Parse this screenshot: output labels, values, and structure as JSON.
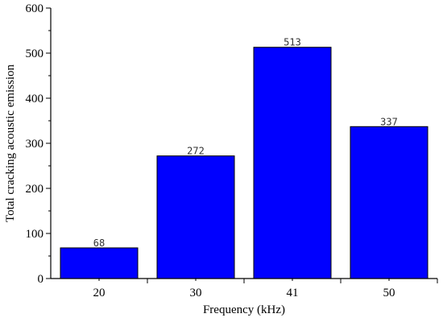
{
  "chart_data": {
    "type": "bar",
    "categories": [
      "20",
      "30",
      "41",
      "50"
    ],
    "values": [
      68,
      272,
      513,
      337
    ],
    "data_labels": [
      "68",
      "272",
      "513",
      "337"
    ],
    "title": "",
    "xlabel": "Frequency (kHz)",
    "ylabel": "Total cracking acoustic emission",
    "ylim": [
      0,
      600
    ],
    "yticks": [
      0,
      100,
      200,
      300,
      400,
      500,
      600
    ],
    "ytick_labels": [
      "0",
      "100",
      "200",
      "300",
      "400",
      "500",
      "600"
    ],
    "bar_color": "#0000ff",
    "grid": false,
    "legend": "none"
  }
}
